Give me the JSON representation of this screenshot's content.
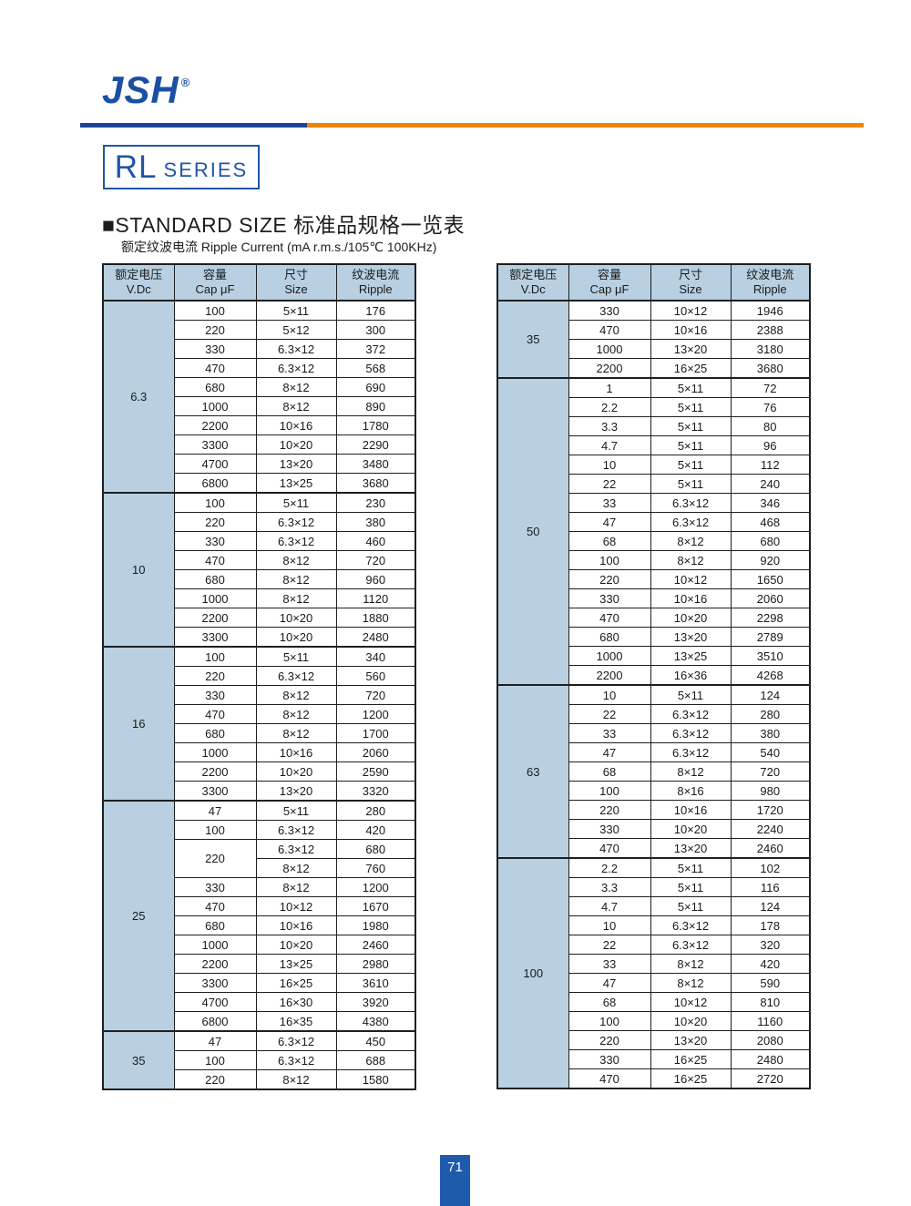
{
  "brand": {
    "logo": "JSH",
    "registered_mark": "®"
  },
  "series": {
    "name": "RL",
    "suffix": "SERIES"
  },
  "heading": {
    "title": "■STANDARD SIZE 标准品规格一览表"
  },
  "subtitle": {
    "text": "额定纹波电流  Ripple Current (mA r.m.s./105℃ 100KHz)"
  },
  "footer": {
    "page_number": "71"
  },
  "colors": {
    "accent_blue": "#1b4fa4",
    "rule_blue": "#1c4397",
    "rule_orange": "#f08300",
    "header_fill": "#b8d0e2",
    "grid_line": "#1f1f1f",
    "footer_blue": "#1f5bad"
  },
  "table_columns": [
    {
      "cn": "额定电压",
      "en": "V.Dc"
    },
    {
      "cn": "容量",
      "en": "Cap μF"
    },
    {
      "cn": "尺寸",
      "en": "Size"
    },
    {
      "cn": "纹波电流",
      "en": "Ripple"
    }
  ],
  "tables": [
    {
      "id": "left",
      "groups": [
        {
          "voltage": "6.3",
          "rows": [
            {
              "cap": "100",
              "size": "5×11",
              "ripple": "176"
            },
            {
              "cap": "220",
              "size": "5×12",
              "ripple": "300"
            },
            {
              "cap": "330",
              "size": "6.3×12",
              "ripple": "372"
            },
            {
              "cap": "470",
              "size": "6.3×12",
              "ripple": "568"
            },
            {
              "cap": "680",
              "size": "8×12",
              "ripple": "690"
            },
            {
              "cap": "1000",
              "size": "8×12",
              "ripple": "890"
            },
            {
              "cap": "2200",
              "size": "10×16",
              "ripple": "1780"
            },
            {
              "cap": "3300",
              "size": "10×20",
              "ripple": "2290"
            },
            {
              "cap": "4700",
              "size": "13×20",
              "ripple": "3480"
            },
            {
              "cap": "6800",
              "size": "13×25",
              "ripple": "3680"
            }
          ]
        },
        {
          "voltage": "10",
          "rows": [
            {
              "cap": "100",
              "size": "5×11",
              "ripple": "230"
            },
            {
              "cap": "220",
              "size": "6.3×12",
              "ripple": "380"
            },
            {
              "cap": "330",
              "size": "6.3×12",
              "ripple": "460"
            },
            {
              "cap": "470",
              "size": "8×12",
              "ripple": "720"
            },
            {
              "cap": "680",
              "size": "8×12",
              "ripple": "960"
            },
            {
              "cap": "1000",
              "size": "8×12",
              "ripple": "1120"
            },
            {
              "cap": "2200",
              "size": "10×20",
              "ripple": "1880"
            },
            {
              "cap": "3300",
              "size": "10×20",
              "ripple": "2480"
            }
          ]
        },
        {
          "voltage": "16",
          "rows": [
            {
              "cap": "100",
              "size": "5×11",
              "ripple": "340"
            },
            {
              "cap": "220",
              "size": "6.3×12",
              "ripple": "560"
            },
            {
              "cap": "330",
              "size": "8×12",
              "ripple": "720"
            },
            {
              "cap": "470",
              "size": "8×12",
              "ripple": "1200"
            },
            {
              "cap": "680",
              "size": "8×12",
              "ripple": "1700"
            },
            {
              "cap": "1000",
              "size": "10×16",
              "ripple": "2060"
            },
            {
              "cap": "2200",
              "size": "10×20",
              "ripple": "2590"
            },
            {
              "cap": "3300",
              "size": "13×20",
              "ripple": "3320"
            }
          ]
        },
        {
          "voltage": "25",
          "rows": [
            {
              "cap": "47",
              "size": "5×11",
              "ripple": "280"
            },
            {
              "cap": "100",
              "size": "6.3×12",
              "ripple": "420"
            },
            {
              "cap": "220",
              "cap_rowspan": 2,
              "size": "6.3×12",
              "ripple": "680"
            },
            {
              "cap": null,
              "size": "8×12",
              "ripple": "760"
            },
            {
              "cap": "330",
              "size": "8×12",
              "ripple": "1200"
            },
            {
              "cap": "470",
              "size": "10×12",
              "ripple": "1670"
            },
            {
              "cap": "680",
              "size": "10×16",
              "ripple": "1980"
            },
            {
              "cap": "1000",
              "size": "10×20",
              "ripple": "2460"
            },
            {
              "cap": "2200",
              "size": "13×25",
              "ripple": "2980"
            },
            {
              "cap": "3300",
              "size": "16×25",
              "ripple": "3610"
            },
            {
              "cap": "4700",
              "size": "16×30",
              "ripple": "3920"
            },
            {
              "cap": "6800",
              "size": "16×35",
              "ripple": "4380"
            }
          ]
        },
        {
          "voltage": "35",
          "rows": [
            {
              "cap": "47",
              "size": "6.3×12",
              "ripple": "450"
            },
            {
              "cap": "100",
              "size": "6.3×12",
              "ripple": "688"
            },
            {
              "cap": "220",
              "size": "8×12",
              "ripple": "1580"
            }
          ]
        }
      ]
    },
    {
      "id": "right",
      "groups": [
        {
          "voltage": "35",
          "rows": [
            {
              "cap": "330",
              "size": "10×12",
              "ripple": "1946"
            },
            {
              "cap": "470",
              "size": "10×16",
              "ripple": "2388"
            },
            {
              "cap": "1000",
              "size": "13×20",
              "ripple": "3180"
            },
            {
              "cap": "2200",
              "size": "16×25",
              "ripple": "3680"
            }
          ]
        },
        {
          "voltage": "50",
          "rows": [
            {
              "cap": "1",
              "size": "5×11",
              "ripple": "72"
            },
            {
              "cap": "2.2",
              "size": "5×11",
              "ripple": "76"
            },
            {
              "cap": "3.3",
              "size": "5×11",
              "ripple": "80"
            },
            {
              "cap": "4.7",
              "size": "5×11",
              "ripple": "96"
            },
            {
              "cap": "10",
              "size": "5×11",
              "ripple": "112"
            },
            {
              "cap": "22",
              "size": "5×11",
              "ripple": "240"
            },
            {
              "cap": "33",
              "size": "6.3×12",
              "ripple": "346"
            },
            {
              "cap": "47",
              "size": "6.3×12",
              "ripple": "468"
            },
            {
              "cap": "68",
              "size": "8×12",
              "ripple": "680"
            },
            {
              "cap": "100",
              "size": "8×12",
              "ripple": "920"
            },
            {
              "cap": "220",
              "size": "10×12",
              "ripple": "1650"
            },
            {
              "cap": "330",
              "size": "10×16",
              "ripple": "2060"
            },
            {
              "cap": "470",
              "size": "10×20",
              "ripple": "2298"
            },
            {
              "cap": "680",
              "size": "13×20",
              "ripple": "2789"
            },
            {
              "cap": "1000",
              "size": "13×25",
              "ripple": "3510"
            },
            {
              "cap": "2200",
              "size": "16×36",
              "ripple": "4268"
            }
          ]
        },
        {
          "voltage": "63",
          "rows": [
            {
              "cap": "10",
              "size": "5×11",
              "ripple": "124"
            },
            {
              "cap": "22",
              "size": "6.3×12",
              "ripple": "280"
            },
            {
              "cap": "33",
              "size": "6.3×12",
              "ripple": "380"
            },
            {
              "cap": "47",
              "size": "6.3×12",
              "ripple": "540"
            },
            {
              "cap": "68",
              "size": "8×12",
              "ripple": "720"
            },
            {
              "cap": "100",
              "size": "8×16",
              "ripple": "980"
            },
            {
              "cap": "220",
              "size": "10×16",
              "ripple": "1720"
            },
            {
              "cap": "330",
              "size": "10×20",
              "ripple": "2240"
            },
            {
              "cap": "470",
              "size": "13×20",
              "ripple": "2460"
            }
          ]
        },
        {
          "voltage": "100",
          "rows": [
            {
              "cap": "2.2",
              "size": "5×11",
              "ripple": "102"
            },
            {
              "cap": "3.3",
              "size": "5×11",
              "ripple": "116"
            },
            {
              "cap": "4.7",
              "size": "5×11",
              "ripple": "124"
            },
            {
              "cap": "10",
              "size": "6.3×12",
              "ripple": "178"
            },
            {
              "cap": "22",
              "size": "6.3×12",
              "ripple": "320"
            },
            {
              "cap": "33",
              "size": "8×12",
              "ripple": "420"
            },
            {
              "cap": "47",
              "size": "8×12",
              "ripple": "590"
            },
            {
              "cap": "68",
              "size": "10×12",
              "ripple": "810"
            },
            {
              "cap": "100",
              "size": "10×20",
              "ripple": "1160"
            },
            {
              "cap": "220",
              "size": "13×20",
              "ripple": "2080"
            },
            {
              "cap": "330",
              "size": "16×25",
              "ripple": "2480"
            },
            {
              "cap": "470",
              "size": "16×25",
              "ripple": "2720"
            }
          ]
        }
      ]
    }
  ]
}
